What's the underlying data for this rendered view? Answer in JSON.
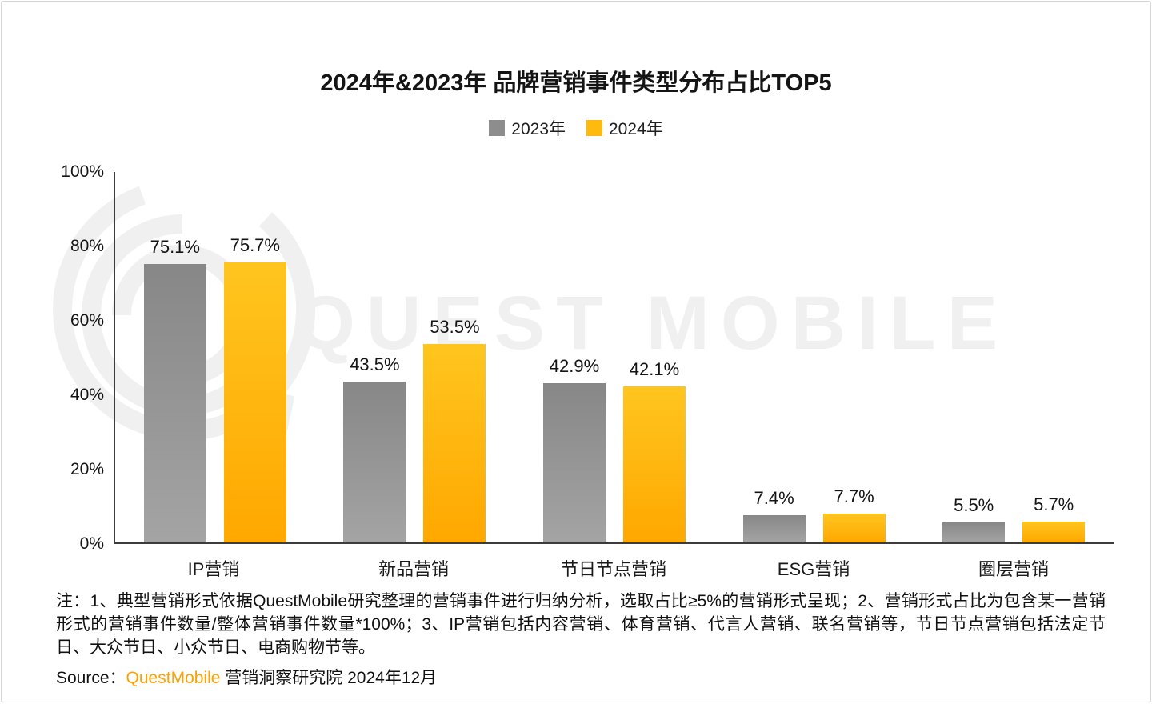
{
  "page": {
    "watermark": "QUEST MOBILE"
  },
  "chart_data": {
    "type": "bar",
    "title": "2024年&2023年 品牌营销事件类型分布占比TOP5",
    "categories": [
      "IP营销",
      "新品营销",
      "节日节点营销",
      "ESG营销",
      "圈层营销"
    ],
    "series": [
      {
        "name": "2023年",
        "color": "#8d8d8d",
        "values": [
          75.1,
          43.5,
          42.9,
          7.4,
          5.5
        ]
      },
      {
        "name": "2024年",
        "color": "#ffba0d",
        "values": [
          75.7,
          53.5,
          42.1,
          7.7,
          5.7
        ]
      }
    ],
    "xlabel": "",
    "ylabel": "",
    "ylim": [
      0,
      100
    ],
    "yticks": [
      "100%",
      "80%",
      "60%",
      "40%",
      "20%",
      "0%"
    ],
    "value_suffix": "%",
    "grid": false,
    "legend_position": "top"
  },
  "notes": {
    "text": "注：1、典型营销形式依据QuestMobile研究整理的营销事件进行归纳分析，选取占比≥5%的营销形式呈现；2、营销形式占比为包含某一营销形式的营销事件数量/整体营销事件数量*100%；3、IP营销包括内容营销、体育营销、代言人营销、联名营销等，节日节点营销包括法定节日、大众节日、小众节日、电商购物节等。"
  },
  "source": {
    "prefix": "Source：",
    "brand": "QuestMobile",
    "suffix": " 营销洞察研究院 2024年12月",
    "brand_color": "#ffa200"
  }
}
